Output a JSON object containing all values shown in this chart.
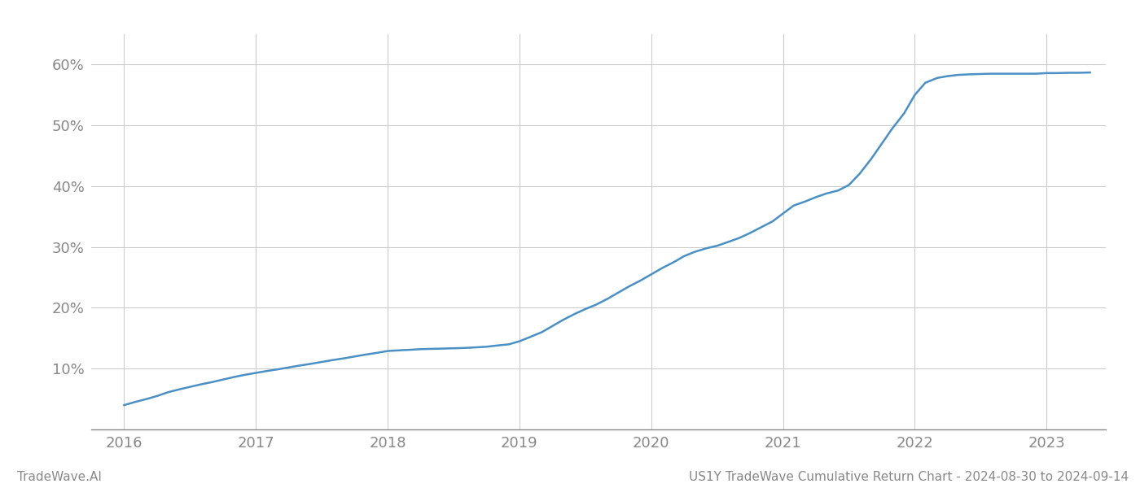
{
  "footer_left": "TradeWave.AI",
  "footer_right": "US1Y TradeWave Cumulative Return Chart - 2024-08-30 to 2024-09-14",
  "line_color": "#4a90c4",
  "background_color": "#ffffff",
  "grid_color": "#cccccc",
  "x_values": [
    2016.0,
    2016.08,
    2016.17,
    2016.25,
    2016.33,
    2016.42,
    2016.5,
    2016.58,
    2016.67,
    2016.75,
    2016.83,
    2016.92,
    2017.0,
    2017.08,
    2017.17,
    2017.25,
    2017.33,
    2017.42,
    2017.5,
    2017.58,
    2017.67,
    2017.75,
    2017.83,
    2017.92,
    2018.0,
    2018.08,
    2018.17,
    2018.25,
    2018.33,
    2018.42,
    2018.5,
    2018.58,
    2018.67,
    2018.75,
    2018.83,
    2018.92,
    2019.0,
    2019.08,
    2019.17,
    2019.25,
    2019.33,
    2019.42,
    2019.5,
    2019.58,
    2019.67,
    2019.75,
    2019.83,
    2019.92,
    2020.0,
    2020.08,
    2020.17,
    2020.25,
    2020.33,
    2020.42,
    2020.5,
    2020.58,
    2020.67,
    2020.75,
    2020.83,
    2020.92,
    2021.0,
    2021.08,
    2021.17,
    2021.25,
    2021.33,
    2021.42,
    2021.5,
    2021.58,
    2021.67,
    2021.75,
    2021.83,
    2021.92,
    2022.0,
    2022.08,
    2022.17,
    2022.25,
    2022.33,
    2022.42,
    2022.5,
    2022.58,
    2022.67,
    2022.75,
    2022.83,
    2022.92,
    2023.0,
    2023.08,
    2023.17,
    2023.25,
    2023.33
  ],
  "y_values": [
    4.0,
    4.5,
    5.0,
    5.5,
    6.1,
    6.6,
    7.0,
    7.4,
    7.8,
    8.2,
    8.6,
    9.0,
    9.3,
    9.6,
    9.9,
    10.2,
    10.5,
    10.8,
    11.1,
    11.4,
    11.7,
    12.0,
    12.3,
    12.6,
    12.9,
    13.0,
    13.1,
    13.2,
    13.25,
    13.3,
    13.35,
    13.4,
    13.5,
    13.6,
    13.8,
    14.0,
    14.5,
    15.2,
    16.0,
    17.0,
    18.0,
    19.0,
    19.8,
    20.5,
    21.5,
    22.5,
    23.5,
    24.5,
    25.5,
    26.5,
    27.5,
    28.5,
    29.2,
    29.8,
    30.2,
    30.8,
    31.5,
    32.3,
    33.2,
    34.2,
    35.5,
    36.8,
    37.5,
    38.2,
    38.8,
    39.3,
    40.2,
    42.0,
    44.5,
    47.0,
    49.5,
    52.0,
    55.0,
    57.0,
    57.8,
    58.1,
    58.3,
    58.4,
    58.45,
    58.5,
    58.5,
    58.5,
    58.5,
    58.5,
    58.6,
    58.6,
    58.65,
    58.65,
    58.7
  ],
  "xlim": [
    2015.75,
    2023.45
  ],
  "ylim": [
    0,
    65
  ],
  "yticks": [
    0,
    10,
    20,
    30,
    40,
    50,
    60
  ],
  "ytick_labels": [
    "",
    "10%",
    "20%",
    "30%",
    "40%",
    "50%",
    "60%"
  ],
  "xticks": [
    2016,
    2017,
    2018,
    2019,
    2020,
    2021,
    2022,
    2023
  ],
  "xtick_labels": [
    "2016",
    "2017",
    "2018",
    "2019",
    "2020",
    "2021",
    "2022",
    "2023"
  ],
  "tick_color": "#888888",
  "tick_fontsize": 13,
  "footer_fontsize": 11,
  "line_width": 1.8
}
